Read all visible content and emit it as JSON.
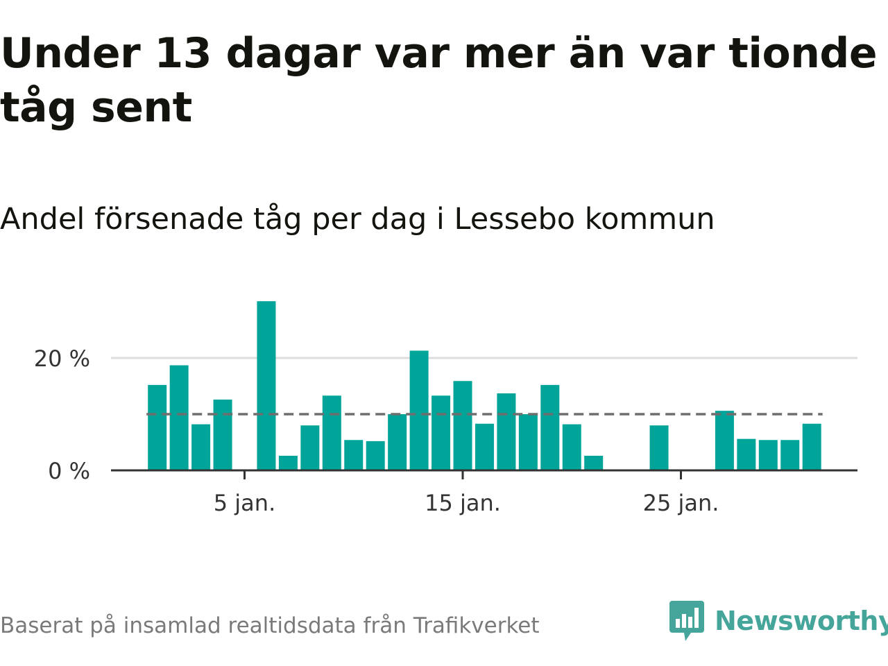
{
  "header": {
    "title": "Under 13 dagar var mer än var tionde tåg sent",
    "subtitle": "Andel försenade tåg per dag i Lessebo kommun"
  },
  "footer": {
    "source": "Baserat på insamlad realtidsdata från Trafikverket",
    "brand": "Newsworthy"
  },
  "colors": {
    "bar": "#00a499",
    "reference_line": "#6e6e6e",
    "grid": "#dddddd",
    "axis": "#333333",
    "brand": "#46a59a"
  },
  "chart_data": {
    "type": "bar",
    "title": "Under 13 dagar var mer än var tionde tåg sent",
    "subtitle": "Andel försenade tåg per dag i Lessebo kommun",
    "x_unit": "day of January",
    "x": [
      1,
      2,
      3,
      4,
      5,
      6,
      7,
      8,
      9,
      10,
      11,
      12,
      13,
      14,
      15,
      16,
      17,
      18,
      19,
      20,
      21,
      22,
      23,
      24,
      25,
      26,
      27,
      28,
      29,
      30,
      31
    ],
    "values": [
      15.2,
      18.7,
      8.2,
      12.6,
      0,
      30.1,
      2.6,
      8.0,
      13.3,
      5.4,
      5.2,
      10.0,
      21.3,
      13.3,
      15.9,
      8.3,
      13.7,
      10.0,
      15.2,
      8.2,
      2.6,
      0,
      0,
      8.0,
      0,
      0,
      10.6,
      5.6,
      5.4,
      5.4,
      8.3
    ],
    "reference_line": 10,
    "ylim": [
      0,
      30
    ],
    "y_ticks": [
      {
        "value": 0,
        "label": "0 %"
      },
      {
        "value": 20,
        "label": "20 %"
      }
    ],
    "x_ticks": [
      {
        "value": 5,
        "label": "5 jan."
      },
      {
        "value": 15,
        "label": "15 jan."
      },
      {
        "value": 25,
        "label": "25 jan."
      }
    ],
    "grid": true,
    "legend": "none"
  }
}
